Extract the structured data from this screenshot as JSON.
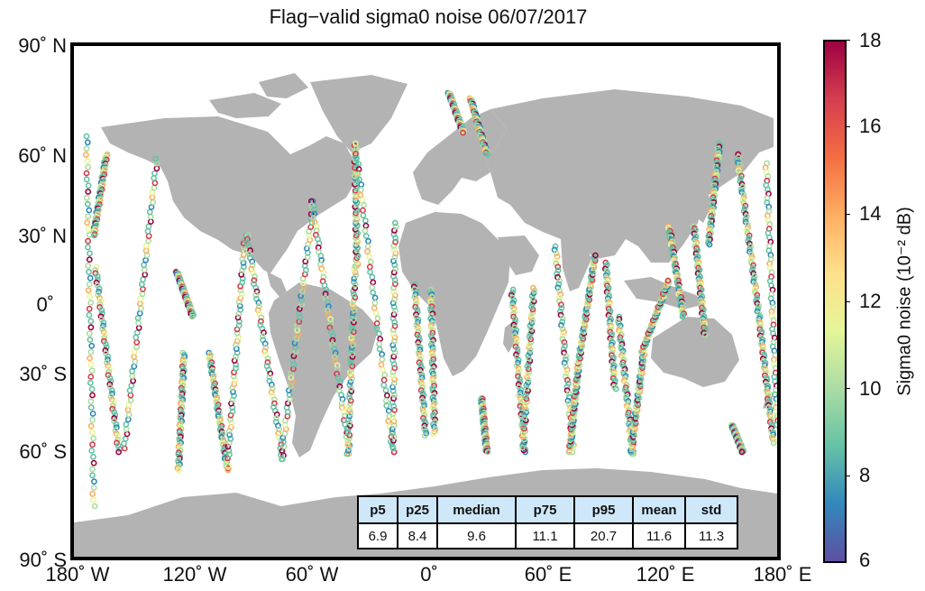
{
  "title": "Flag−valid sigma0 noise 06/07/2017",
  "y_axis_labels": [
    "90˚ N",
    "60˚ N",
    "30˚ N",
    "0˚",
    "30˚ S",
    "60˚ S",
    "90˚ S"
  ],
  "x_axis_labels": [
    "180˚ W",
    "120˚ W",
    "60˚ W",
    "0˚",
    "60˚ E",
    "120˚ E",
    "180˚ E"
  ],
  "colorbar": {
    "label": "Sigma0 noise (10⁻² dB)",
    "ticks": [
      "18",
      "16",
      "14",
      "12",
      "10",
      "8",
      "6"
    ],
    "min": 6,
    "max": 18,
    "colormap": [
      "#5e4fa2",
      "#3288bd",
      "#66c2a5",
      "#abdda4",
      "#e6f598",
      "#fee08b",
      "#fdae61",
      "#f46d43",
      "#d53e4f",
      "#9e0142"
    ]
  },
  "colors": {
    "land": "#b3b3b3",
    "ocean": "#ffffff",
    "table_header": "#cfe8f9"
  },
  "stats": {
    "headers": [
      "p5",
      "p25",
      "median",
      "p75",
      "p95",
      "mean",
      "std"
    ],
    "values": [
      "6.9",
      "8.4",
      "9.6",
      "11.1",
      "20.7",
      "11.6",
      "11.3"
    ]
  }
}
